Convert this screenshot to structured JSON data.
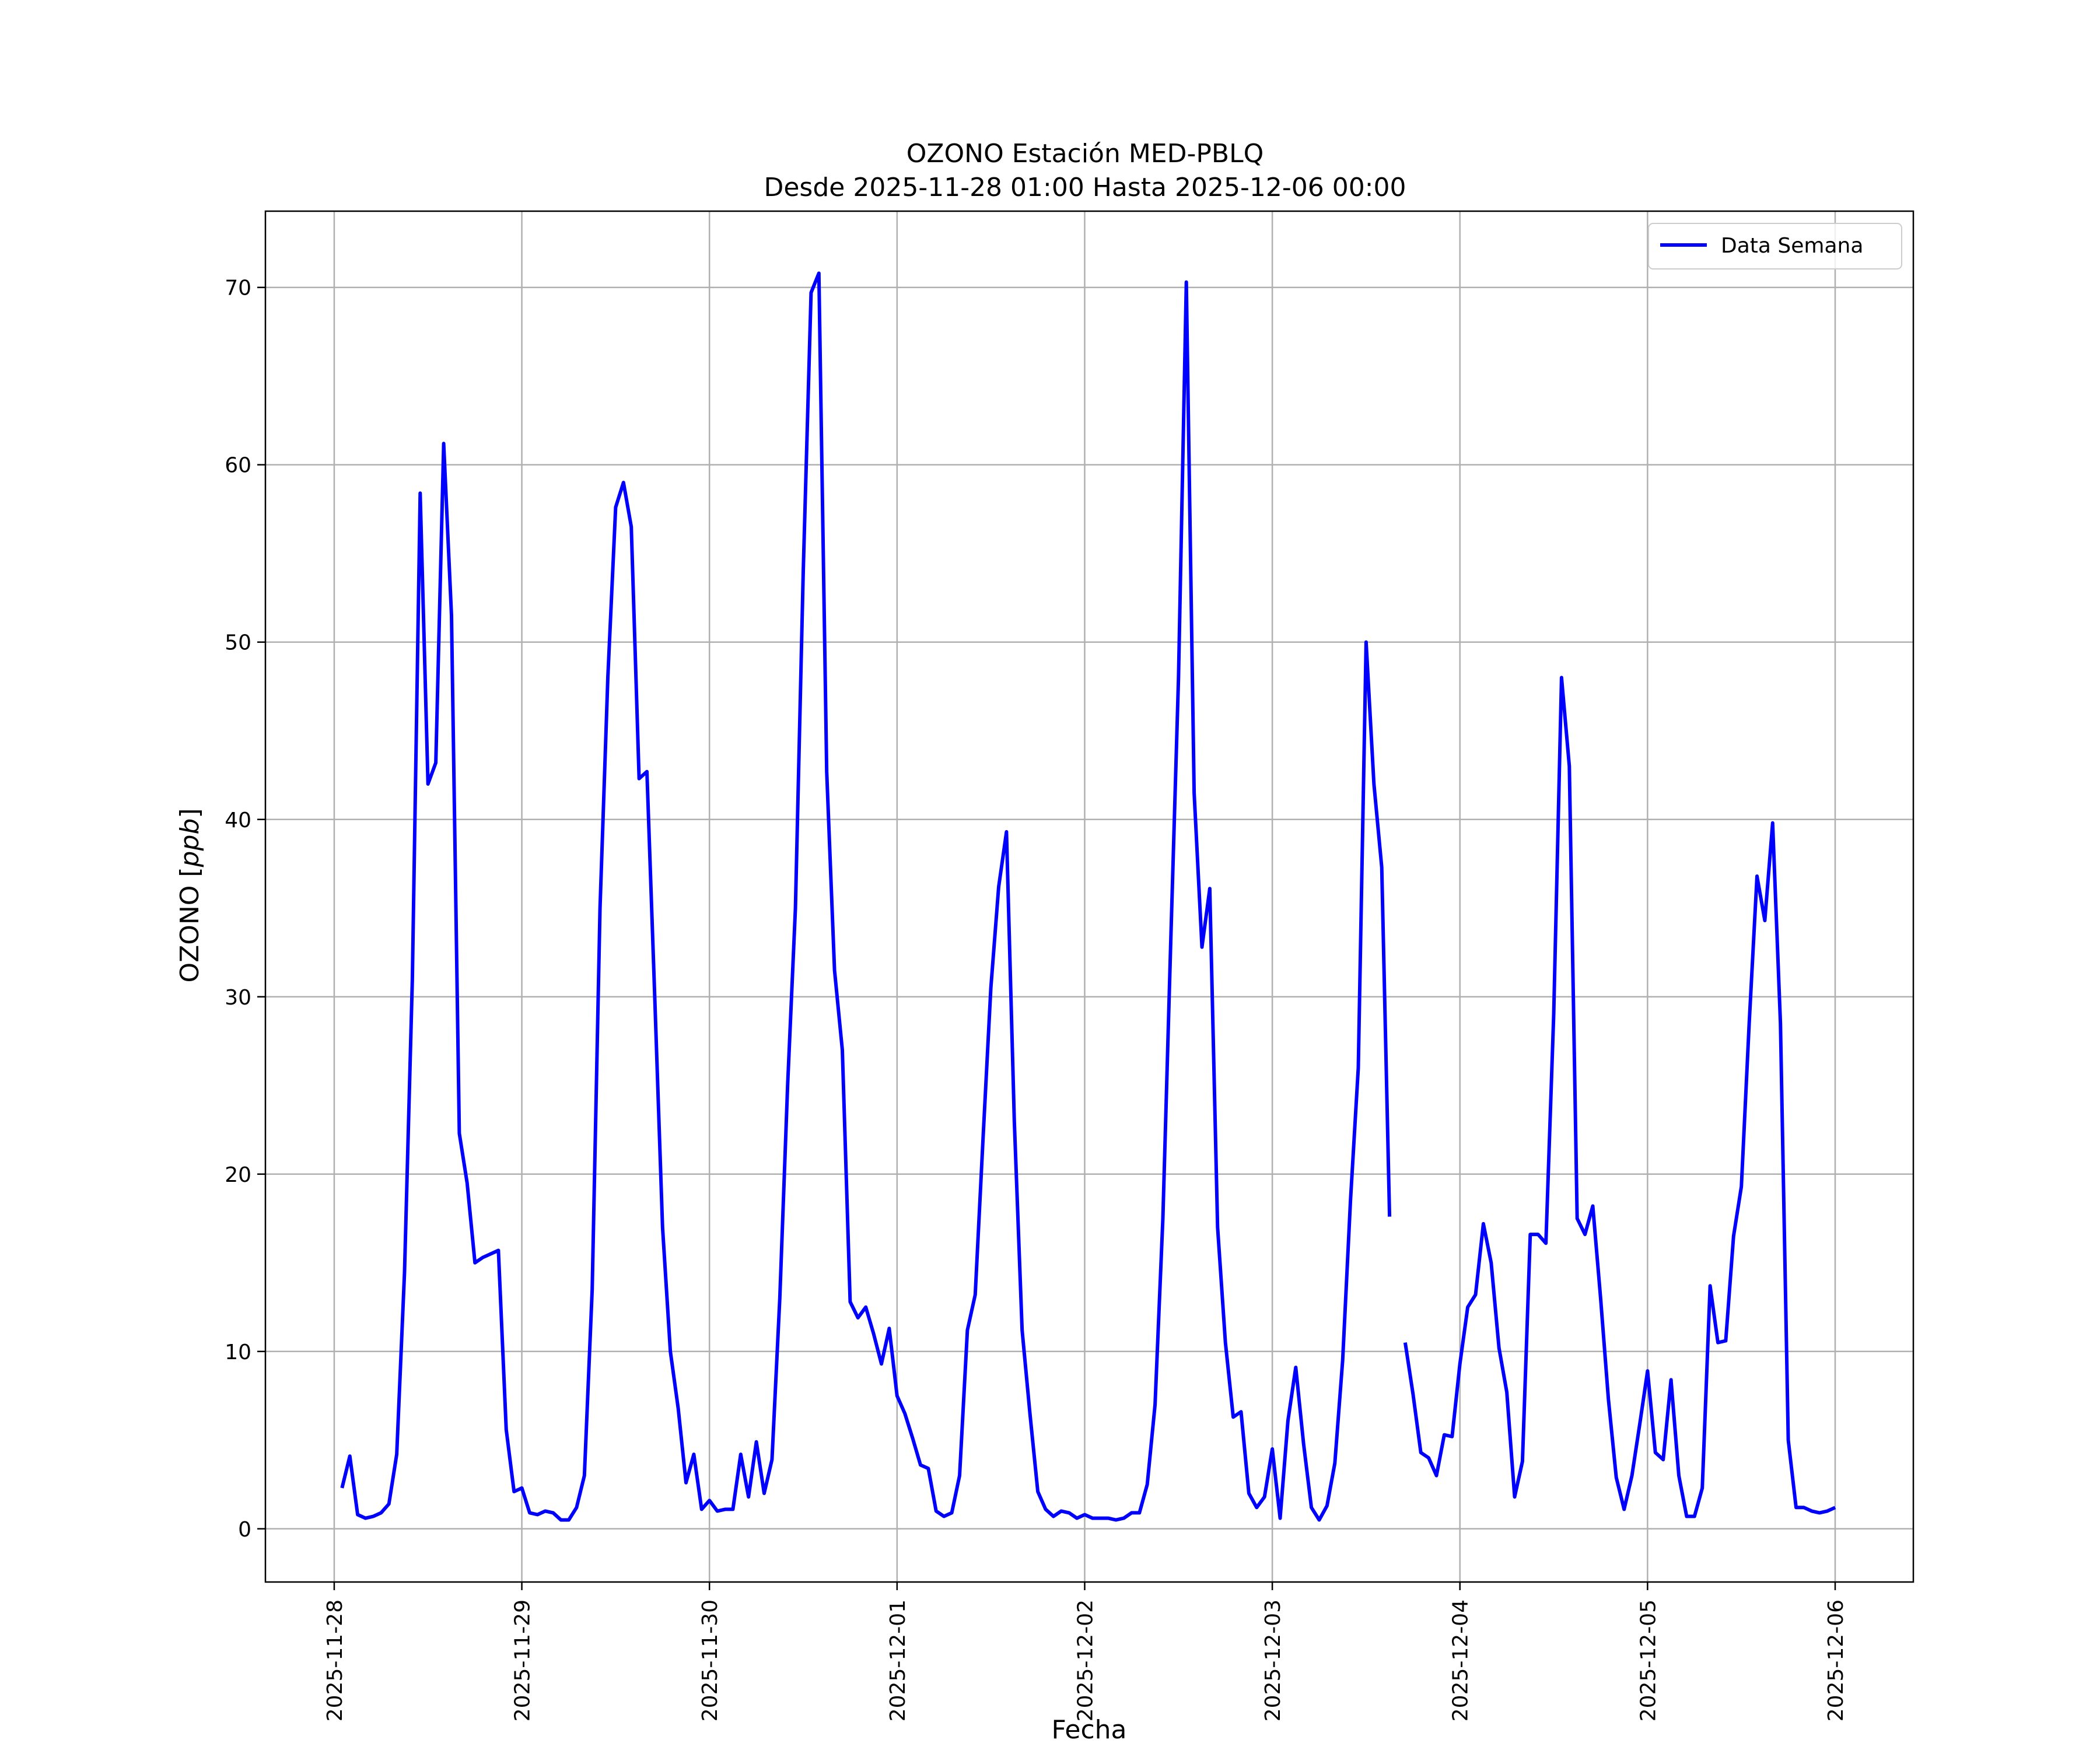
{
  "chart_data": {
    "type": "line",
    "title": "OZONO Estación MED-PBLQ",
    "subtitle": "Desde 2025-11-28 01:00 Hasta 2025-12-06 00:00",
    "xlabel": "Fecha",
    "ylabel": "OZONO [ppb]",
    "ylim": [
      -3,
      74.3
    ],
    "xlim": [
      "2025-11-27 15:12",
      "2025-12-06 10:00"
    ],
    "yticks": [
      0,
      10,
      20,
      30,
      40,
      50,
      60,
      70
    ],
    "xticks": [
      "2025-11-28",
      "2025-11-29",
      "2025-11-30",
      "2025-12-01",
      "2025-12-02",
      "2025-12-03",
      "2025-12-04",
      "2025-12-05",
      "2025-12-06"
    ],
    "grid": true,
    "legend_position": "upper right",
    "colors": {
      "series": "#0000ff",
      "grid": "#b0b0b0",
      "axes": "#000000"
    },
    "series": [
      {
        "name": "Data Semana",
        "points": [
          [
            "2025-11-28 01:00",
            2.3
          ],
          [
            "2025-11-28 02:00",
            4.1
          ],
          [
            "2025-11-28 03:00",
            0.8
          ],
          [
            "2025-11-28 04:00",
            0.6
          ],
          [
            "2025-11-28 05:00",
            0.7
          ],
          [
            "2025-11-28 06:00",
            0.9
          ],
          [
            "2025-11-28 07:00",
            1.4
          ],
          [
            "2025-11-28 08:00",
            4.2
          ],
          [
            "2025-11-28 09:00",
            14.5
          ],
          [
            "2025-11-28 10:00",
            31.0
          ],
          [
            "2025-11-28 11:00",
            58.4
          ],
          [
            "2025-11-28 12:00",
            42.0
          ],
          [
            "2025-11-28 13:00",
            43.2
          ],
          [
            "2025-11-28 14:00",
            61.2
          ],
          [
            "2025-11-28 15:00",
            51.5
          ],
          [
            "2025-11-28 16:00",
            22.3
          ],
          [
            "2025-11-28 17:00",
            19.5
          ],
          [
            "2025-11-28 18:00",
            15.0
          ],
          [
            "2025-11-28 19:00",
            15.3
          ],
          [
            "2025-11-28 20:00",
            15.5
          ],
          [
            "2025-11-28 21:00",
            15.7
          ],
          [
            "2025-11-28 22:00",
            5.6
          ],
          [
            "2025-11-28 23:00",
            2.1
          ],
          [
            "2025-11-29 00:00",
            2.3
          ],
          [
            "2025-11-29 01:00",
            0.9
          ],
          [
            "2025-11-29 02:00",
            0.8
          ],
          [
            "2025-11-29 03:00",
            1.0
          ],
          [
            "2025-11-29 04:00",
            0.9
          ],
          [
            "2025-11-29 05:00",
            0.5
          ],
          [
            "2025-11-29 06:00",
            0.5
          ],
          [
            "2025-11-29 07:00",
            1.2
          ],
          [
            "2025-11-29 08:00",
            3.0
          ],
          [
            "2025-11-29 09:00",
            13.5
          ],
          [
            "2025-11-29 10:00",
            35.0
          ],
          [
            "2025-11-29 11:00",
            48.0
          ],
          [
            "2025-11-29 12:00",
            57.6
          ],
          [
            "2025-11-29 13:00",
            59.0
          ],
          [
            "2025-11-29 14:00",
            56.5
          ],
          [
            "2025-11-29 15:00",
            42.3
          ],
          [
            "2025-11-29 16:00",
            42.7
          ],
          [
            "2025-11-29 17:00",
            30.0
          ],
          [
            "2025-11-29 18:00",
            17.0
          ],
          [
            "2025-11-29 19:00",
            10.0
          ],
          [
            "2025-11-29 20:00",
            6.8
          ],
          [
            "2025-11-29 21:00",
            2.6
          ],
          [
            "2025-11-29 22:00",
            4.2
          ],
          [
            "2025-11-29 23:00",
            1.1
          ],
          [
            "2025-11-30 00:00",
            1.6
          ],
          [
            "2025-11-30 01:00",
            1.0
          ],
          [
            "2025-11-30 02:00",
            1.1
          ],
          [
            "2025-11-30 03:00",
            1.1
          ],
          [
            "2025-11-30 04:00",
            4.2
          ],
          [
            "2025-11-30 05:00",
            1.8
          ],
          [
            "2025-11-30 06:00",
            4.9
          ],
          [
            "2025-11-30 07:00",
            2.0
          ],
          [
            "2025-11-30 08:00",
            3.9
          ],
          [
            "2025-11-30 09:00",
            13.0
          ],
          [
            "2025-11-30 10:00",
            25.0
          ],
          [
            "2025-11-30 11:00",
            35.0
          ],
          [
            "2025-11-30 12:00",
            54.0
          ],
          [
            "2025-11-30 13:00",
            69.7
          ],
          [
            "2025-11-30 14:00",
            70.8
          ],
          [
            "2025-11-30 15:00",
            42.7
          ],
          [
            "2025-11-30 16:00",
            31.5
          ],
          [
            "2025-11-30 17:00",
            27.0
          ],
          [
            "2025-11-30 18:00",
            12.8
          ],
          [
            "2025-11-30 19:00",
            11.9
          ],
          [
            "2025-11-30 20:00",
            12.5
          ],
          [
            "2025-11-30 21:00",
            11.0
          ],
          [
            "2025-11-30 22:00",
            9.3
          ],
          [
            "2025-11-30 23:00",
            11.3
          ],
          [
            "2025-12-01 00:00",
            7.5
          ],
          [
            "2025-12-01 01:00",
            6.5
          ],
          [
            "2025-12-01 02:00",
            5.1
          ],
          [
            "2025-12-01 03:00",
            3.6
          ],
          [
            "2025-12-01 04:00",
            3.4
          ],
          [
            "2025-12-01 05:00",
            1.0
          ],
          [
            "2025-12-01 06:00",
            0.7
          ],
          [
            "2025-12-01 07:00",
            0.9
          ],
          [
            "2025-12-01 08:00",
            3.0
          ],
          [
            "2025-12-01 09:00",
            11.2
          ],
          [
            "2025-12-01 10:00",
            13.2
          ],
          [
            "2025-12-01 11:00",
            22.0
          ],
          [
            "2025-12-01 12:00",
            30.5
          ],
          [
            "2025-12-01 13:00",
            36.2
          ],
          [
            "2025-12-01 14:00",
            39.3
          ],
          [
            "2025-12-01 15:00",
            23.0
          ],
          [
            "2025-12-01 16:00",
            11.2
          ],
          [
            "2025-12-01 17:00",
            6.5
          ],
          [
            "2025-12-01 18:00",
            2.1
          ],
          [
            "2025-12-01 19:00",
            1.1
          ],
          [
            "2025-12-01 20:00",
            0.7
          ],
          [
            "2025-12-01 21:00",
            1.0
          ],
          [
            "2025-12-01 22:00",
            0.9
          ],
          [
            "2025-12-01 23:00",
            0.6
          ],
          [
            "2025-12-02 00:00",
            0.8
          ],
          [
            "2025-12-02 01:00",
            0.6
          ],
          [
            "2025-12-02 02:00",
            0.6
          ],
          [
            "2025-12-02 03:00",
            0.6
          ],
          [
            "2025-12-02 04:00",
            0.5
          ],
          [
            "2025-12-02 05:00",
            0.6
          ],
          [
            "2025-12-02 06:00",
            0.9
          ],
          [
            "2025-12-02 07:00",
            0.9
          ],
          [
            "2025-12-02 08:00",
            2.5
          ],
          [
            "2025-12-02 09:00",
            7.0
          ],
          [
            "2025-12-02 10:00",
            17.5
          ],
          [
            "2025-12-02 11:00",
            33.0
          ],
          [
            "2025-12-02 12:00",
            48.0
          ],
          [
            "2025-12-02 13:00",
            70.3
          ],
          [
            "2025-12-02 14:00",
            41.5
          ],
          [
            "2025-12-02 15:00",
            32.8
          ],
          [
            "2025-12-02 16:00",
            36.1
          ],
          [
            "2025-12-02 17:00",
            17.0
          ],
          [
            "2025-12-02 18:00",
            10.5
          ],
          [
            "2025-12-02 19:00",
            6.3
          ],
          [
            "2025-12-02 20:00",
            6.6
          ],
          [
            "2025-12-02 21:00",
            2.0
          ],
          [
            "2025-12-02 22:00",
            1.2
          ],
          [
            "2025-12-02 23:00",
            1.8
          ],
          [
            "2025-12-03 00:00",
            4.5
          ],
          [
            "2025-12-03 01:00",
            0.6
          ],
          [
            "2025-12-03 02:00",
            6.1
          ],
          [
            "2025-12-03 03:00",
            9.1
          ],
          [
            "2025-12-03 04:00",
            4.8
          ],
          [
            "2025-12-03 05:00",
            1.2
          ],
          [
            "2025-12-03 06:00",
            0.5
          ],
          [
            "2025-12-03 07:00",
            1.3
          ],
          [
            "2025-12-03 08:00",
            3.7
          ],
          [
            "2025-12-03 09:00",
            9.5
          ],
          [
            "2025-12-03 10:00",
            18.5
          ],
          [
            "2025-12-03 11:00",
            26.0
          ],
          [
            "2025-12-03 12:00",
            50.0
          ],
          [
            "2025-12-03 13:00",
            42.0
          ],
          [
            "2025-12-03 14:00",
            37.3
          ],
          [
            "2025-12-03 15:00",
            17.6
          ],
          [
            "2025-12-03 16:00",
            null
          ],
          [
            "2025-12-03 17:00",
            10.5
          ],
          [
            "2025-12-03 18:00",
            7.6
          ],
          [
            "2025-12-03 19:00",
            4.3
          ],
          [
            "2025-12-03 20:00",
            4.0
          ],
          [
            "2025-12-03 21:00",
            3.0
          ],
          [
            "2025-12-03 22:00",
            5.3
          ],
          [
            "2025-12-03 23:00",
            5.2
          ],
          [
            "2025-12-04 00:00",
            9.3
          ],
          [
            "2025-12-04 01:00",
            12.5
          ],
          [
            "2025-12-04 02:00",
            13.2
          ],
          [
            "2025-12-04 03:00",
            17.2
          ],
          [
            "2025-12-04 04:00",
            15.0
          ],
          [
            "2025-12-04 05:00",
            10.2
          ],
          [
            "2025-12-04 06:00",
            7.7
          ],
          [
            "2025-12-04 07:00",
            1.8
          ],
          [
            "2025-12-04 08:00",
            3.8
          ],
          [
            "2025-12-04 09:00",
            16.6
          ],
          [
            "2025-12-04 10:00",
            16.6
          ],
          [
            "2025-12-04 11:00",
            16.1
          ],
          [
            "2025-12-04 12:00",
            29.0
          ],
          [
            "2025-12-04 13:00",
            48.0
          ],
          [
            "2025-12-04 14:00",
            43.0
          ],
          [
            "2025-12-04 15:00",
            17.5
          ],
          [
            "2025-12-04 16:00",
            16.6
          ],
          [
            "2025-12-04 17:00",
            18.2
          ],
          [
            "2025-12-04 18:00",
            13.0
          ],
          [
            "2025-12-04 19:00",
            7.3
          ],
          [
            "2025-12-04 20:00",
            2.9
          ],
          [
            "2025-12-04 21:00",
            1.1
          ],
          [
            "2025-12-04 22:00",
            3.0
          ],
          [
            "2025-12-04 23:00",
            5.9
          ],
          [
            "2025-12-05 00:00",
            8.9
          ],
          [
            "2025-12-05 01:00",
            4.3
          ],
          [
            "2025-12-05 02:00",
            3.9
          ],
          [
            "2025-12-05 03:00",
            8.4
          ],
          [
            "2025-12-05 04:00",
            3.0
          ],
          [
            "2025-12-05 05:00",
            0.7
          ],
          [
            "2025-12-05 06:00",
            0.7
          ],
          [
            "2025-12-05 07:00",
            2.3
          ],
          [
            "2025-12-05 08:00",
            13.7
          ],
          [
            "2025-12-05 09:00",
            10.5
          ],
          [
            "2025-12-05 10:00",
            10.6
          ],
          [
            "2025-12-05 11:00",
            16.5
          ],
          [
            "2025-12-05 12:00",
            19.3
          ],
          [
            "2025-12-05 13:00",
            28.5
          ],
          [
            "2025-12-05 14:00",
            36.8
          ],
          [
            "2025-12-05 15:00",
            34.3
          ],
          [
            "2025-12-05 16:00",
            39.8
          ],
          [
            "2025-12-05 17:00",
            28.5
          ],
          [
            "2025-12-05 18:00",
            5.0
          ],
          [
            "2025-12-05 19:00",
            1.2
          ],
          [
            "2025-12-05 20:00",
            1.2
          ],
          [
            "2025-12-05 21:00",
            1.0
          ],
          [
            "2025-12-05 22:00",
            0.9
          ],
          [
            "2025-12-05 23:00",
            1.0
          ],
          [
            "2025-12-06 00:00",
            1.2
          ]
        ]
      }
    ]
  }
}
